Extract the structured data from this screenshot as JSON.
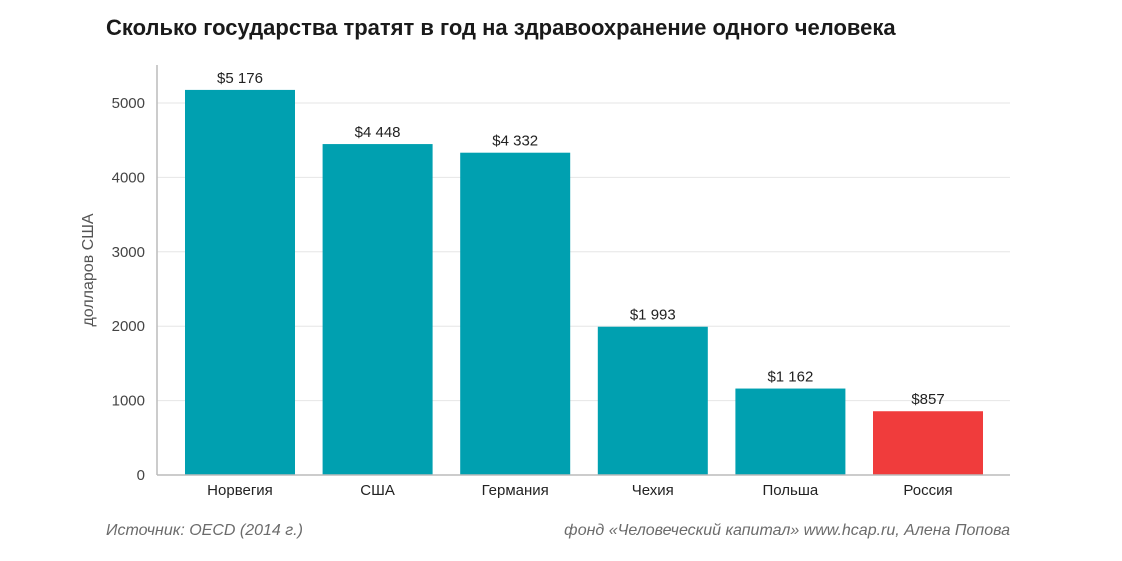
{
  "chart_data": {
    "type": "bar",
    "title": "Сколько государства тратят в год на здравоохранение одного человека",
    "ylabel": "долларов США",
    "xlabel": "",
    "categories": [
      "Норвегия",
      "США",
      "Германия",
      "Чехия",
      "Польша",
      "Россия"
    ],
    "values": [
      5176,
      4448,
      4332,
      1993,
      1162,
      857
    ],
    "value_labels": [
      "$5 176",
      "$4 448",
      "$4 332",
      "$1 993",
      "$1 162",
      "$857"
    ],
    "bar_colors": [
      "#00a0b0",
      "#00a0b0",
      "#00a0b0",
      "#00a0b0",
      "#00a0b0",
      "#f03c3c"
    ],
    "ylim": [
      0,
      5000
    ],
    "yticks": [
      0,
      1000,
      2000,
      3000,
      4000,
      5000
    ],
    "grid": true,
    "legend": "none"
  },
  "footer": {
    "source": "Источник: OECD (2014 г.)",
    "credit": "фонд «Человеческий капитал» www.hcap.ru, Алена Попова"
  }
}
